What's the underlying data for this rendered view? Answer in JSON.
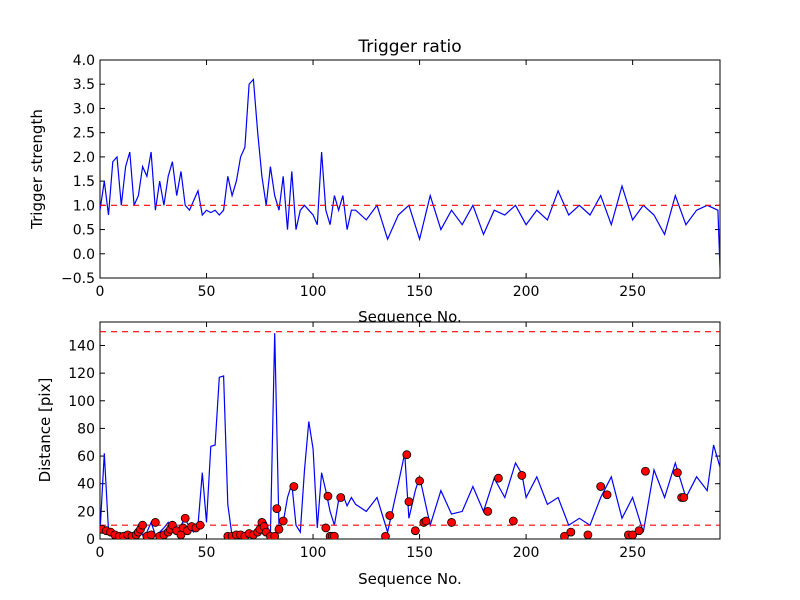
{
  "chart_data": [
    {
      "type": "line",
      "title": "Trigger ratio",
      "xlabel": "Sequence No.",
      "ylabel": "Trigger strength",
      "xlim": [
        0,
        291
      ],
      "ylim": [
        -0.5,
        4.0
      ],
      "xticks": [
        "0",
        "50",
        "100",
        "150",
        "200",
        "250"
      ],
      "yticks": [
        "−0.5",
        "0.0",
        "0.5",
        "1.0",
        "1.5",
        "2.0",
        "2.5",
        "3.0",
        "3.5",
        "4.0"
      ],
      "series": [
        {
          "name": "trigger strength",
          "color": "#0000ff",
          "x": [
            0,
            2,
            4,
            6,
            8,
            10,
            12,
            14,
            16,
            18,
            20,
            22,
            24,
            26,
            28,
            30,
            32,
            34,
            36,
            38,
            40,
            42,
            44,
            46,
            48,
            50,
            52,
            54,
            56,
            58,
            60,
            62,
            64,
            66,
            68,
            70,
            72,
            74,
            76,
            78,
            80,
            82,
            84,
            86,
            88,
            90,
            92,
            94,
            96,
            98,
            100,
            102,
            104,
            106,
            108,
            110,
            112,
            114,
            116,
            118,
            120,
            125,
            130,
            135,
            140,
            145,
            150,
            155,
            160,
            165,
            170,
            175,
            180,
            185,
            190,
            195,
            200,
            205,
            210,
            215,
            220,
            225,
            230,
            235,
            240,
            245,
            250,
            255,
            260,
            265,
            270,
            275,
            280,
            285,
            290,
            291
          ],
          "y": [
            0.9,
            1.5,
            0.8,
            1.9,
            2.0,
            1.0,
            1.8,
            2.1,
            1.0,
            1.2,
            1.8,
            1.6,
            2.1,
            0.9,
            1.5,
            1.0,
            1.6,
            1.9,
            1.2,
            1.7,
            1.0,
            0.9,
            1.1,
            1.3,
            0.8,
            0.9,
            0.85,
            0.9,
            0.8,
            0.9,
            1.6,
            1.2,
            1.5,
            2.0,
            2.2,
            3.5,
            3.6,
            2.5,
            1.6,
            1.0,
            1.8,
            1.2,
            0.9,
            1.6,
            0.5,
            1.7,
            0.5,
            0.9,
            1.0,
            0.9,
            0.8,
            0.6,
            2.1,
            0.9,
            0.6,
            1.2,
            0.9,
            1.2,
            0.5,
            0.9,
            0.9,
            0.7,
            1.0,
            0.3,
            0.8,
            1.0,
            0.3,
            1.2,
            0.5,
            0.9,
            0.6,
            1.0,
            0.4,
            0.9,
            0.8,
            1.0,
            0.6,
            0.9,
            0.7,
            1.3,
            0.8,
            1.0,
            0.8,
            1.2,
            0.6,
            1.4,
            0.7,
            1.0,
            0.8,
            0.4,
            1.2,
            0.6,
            0.9,
            1.0,
            0.9,
            -0.3
          ]
        },
        {
          "name": "threshold",
          "color": "#ff0000",
          "style": "dashed",
          "x": [
            0,
            291
          ],
          "y": [
            1.0,
            1.0
          ]
        }
      ]
    },
    {
      "type": "line",
      "title": "",
      "xlabel": "Sequence No.",
      "ylabel": "Distance [pix]",
      "xlim": [
        0,
        291
      ],
      "ylim": [
        0,
        157
      ],
      "xticks": [
        "0",
        "50",
        "100",
        "150",
        "200",
        "250"
      ],
      "yticks": [
        "0",
        "20",
        "40",
        "60",
        "80",
        "100",
        "120",
        "140"
      ],
      "series": [
        {
          "name": "distance",
          "color": "#0000ff",
          "x": [
            0,
            2,
            4,
            6,
            8,
            10,
            12,
            14,
            16,
            18,
            20,
            22,
            24,
            26,
            28,
            30,
            32,
            34,
            36,
            38,
            40,
            42,
            44,
            46,
            48,
            50,
            52,
            54,
            56,
            58,
            60,
            62,
            64,
            66,
            68,
            70,
            72,
            74,
            76,
            78,
            80,
            82,
            84,
            86,
            88,
            90,
            92,
            94,
            96,
            98,
            100,
            102,
            104,
            106,
            108,
            110,
            112,
            114,
            116,
            118,
            120,
            125,
            130,
            135,
            140,
            143,
            145,
            148,
            150,
            155,
            160,
            165,
            170,
            175,
            180,
            185,
            190,
            195,
            198,
            200,
            205,
            210,
            215,
            220,
            225,
            230,
            235,
            240,
            245,
            250,
            255,
            260,
            265,
            270,
            275,
            280,
            285,
            288,
            291
          ],
          "y": [
            5,
            62,
            6,
            5,
            4,
            3,
            3,
            4,
            2,
            10,
            3,
            5,
            12,
            3,
            5,
            8,
            12,
            6,
            4,
            10,
            15,
            8,
            5,
            10,
            48,
            12,
            67,
            68,
            117,
            118,
            25,
            2,
            3,
            4,
            3,
            5,
            2,
            3,
            8,
            12,
            2,
            149,
            8,
            12,
            30,
            40,
            10,
            5,
            50,
            85,
            65,
            8,
            48,
            35,
            20,
            10,
            28,
            32,
            24,
            30,
            25,
            20,
            30,
            5,
            40,
            62,
            15,
            35,
            45,
            10,
            35,
            18,
            20,
            38,
            20,
            44,
            30,
            55,
            47,
            30,
            45,
            25,
            30,
            10,
            15,
            10,
            30,
            45,
            15,
            30,
            5,
            50,
            30,
            55,
            30,
            45,
            35,
            68,
            52
          ]
        },
        {
          "name": "upper threshold",
          "color": "#ff0000",
          "style": "dashed",
          "x": [
            0,
            291
          ],
          "y": [
            150,
            150
          ]
        },
        {
          "name": "lower threshold",
          "color": "#ff0000",
          "style": "dashed",
          "x": [
            0,
            291
          ],
          "y": [
            10,
            10
          ]
        },
        {
          "name": "below-threshold points",
          "color": "#ff0000",
          "marker": "circle",
          "x": [
            1,
            3,
            5,
            7,
            9,
            11,
            13,
            15,
            17,
            18,
            19,
            20,
            22,
            24,
            26,
            28,
            30,
            32,
            33,
            34,
            36,
            38,
            39,
            40,
            41,
            43,
            45,
            47,
            60,
            62,
            64,
            66,
            68,
            70,
            72,
            74,
            75,
            76,
            77,
            78,
            80,
            82,
            83,
            84,
            86,
            91,
            106,
            107,
            108,
            109,
            110,
            113,
            134,
            136,
            144,
            145,
            148,
            150,
            152,
            153,
            165,
            182,
            187,
            194,
            198,
            218,
            221,
            229,
            235,
            238,
            248,
            250,
            253,
            256,
            271,
            273,
            274
          ],
          "y": [
            7,
            6,
            5,
            3,
            2,
            2,
            3,
            2,
            3,
            5,
            7,
            10,
            2,
            3,
            12,
            2,
            3,
            5,
            7,
            10,
            6,
            3,
            8,
            15,
            6,
            9,
            8,
            10,
            2,
            2,
            3,
            3,
            2,
            4,
            3,
            5,
            7,
            12,
            9,
            5,
            2,
            2,
            22,
            7,
            13,
            38,
            8,
            31,
            2,
            2,
            2,
            30,
            2,
            17,
            61,
            27,
            6,
            42,
            12,
            13,
            12,
            20,
            44,
            13,
            46,
            2,
            5,
            3,
            38,
            32,
            3,
            3,
            6,
            49,
            48,
            30,
            30
          ]
        }
      ]
    }
  ]
}
